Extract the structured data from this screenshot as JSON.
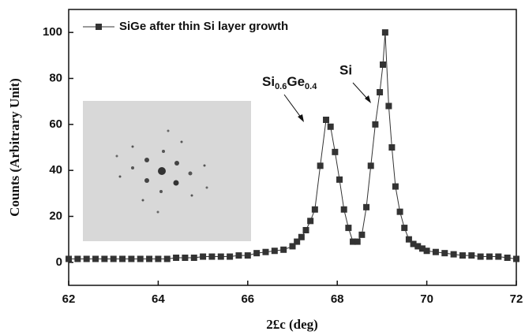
{
  "chart_data": {
    "type": "line",
    "xlabel": "2£c (deg)",
    "ylabel": "Counts (Arbitrary Unit)",
    "xlim": [
      62,
      72
    ],
    "ylim": [
      -10,
      110
    ],
    "xticks": [
      62,
      64,
      66,
      68,
      70,
      72
    ],
    "yticks": [
      0,
      20,
      40,
      60,
      80,
      100
    ],
    "legend": "upper left",
    "series": [
      {
        "name": "SiGe after thin Si layer growth",
        "color": "#333333",
        "x": [
          62,
          62.2,
          62.4,
          62.6,
          62.8,
          63,
          63.2,
          63.4,
          63.6,
          63.8,
          64,
          64.2,
          64.4,
          64.6,
          64.8,
          65,
          65.2,
          65.4,
          65.6,
          65.8,
          66,
          66.2,
          66.4,
          66.6,
          66.8,
          67,
          67.1,
          67.2,
          67.3,
          67.4,
          67.5,
          67.62,
          67.75,
          67.85,
          67.95,
          68.05,
          68.15,
          68.25,
          68.35,
          68.45,
          68.55,
          68.65,
          68.75,
          68.85,
          68.95,
          69.02,
          69.07,
          69.15,
          69.22,
          69.3,
          69.4,
          69.5,
          69.6,
          69.7,
          69.8,
          69.9,
          70,
          70.2,
          70.4,
          70.6,
          70.8,
          71,
          71.2,
          71.4,
          71.6,
          71.8,
          72
        ],
        "values": [
          1.5,
          1.5,
          1.5,
          1.5,
          1.5,
          1.5,
          1.5,
          1.5,
          1.5,
          1.5,
          1.5,
          1.5,
          2,
          2,
          2,
          2.5,
          2.5,
          2.5,
          2.5,
          3,
          3,
          4,
          4.5,
          5,
          5.5,
          7,
          9,
          11,
          14,
          18,
          23,
          42,
          62,
          59,
          48,
          36,
          23,
          15,
          9,
          9,
          12,
          24,
          42,
          60,
          74,
          86,
          100,
          68,
          50,
          33,
          22,
          15,
          10,
          8,
          7,
          6,
          5,
          4.5,
          4,
          3.5,
          3,
          3,
          2.5,
          2.5,
          2.5,
          2,
          1.5
        ]
      }
    ],
    "annotations": [
      {
        "parts": [
          "Si",
          "0.6",
          "Ge",
          "0.4"
        ]
      },
      {
        "text": "Si"
      }
    ]
  }
}
